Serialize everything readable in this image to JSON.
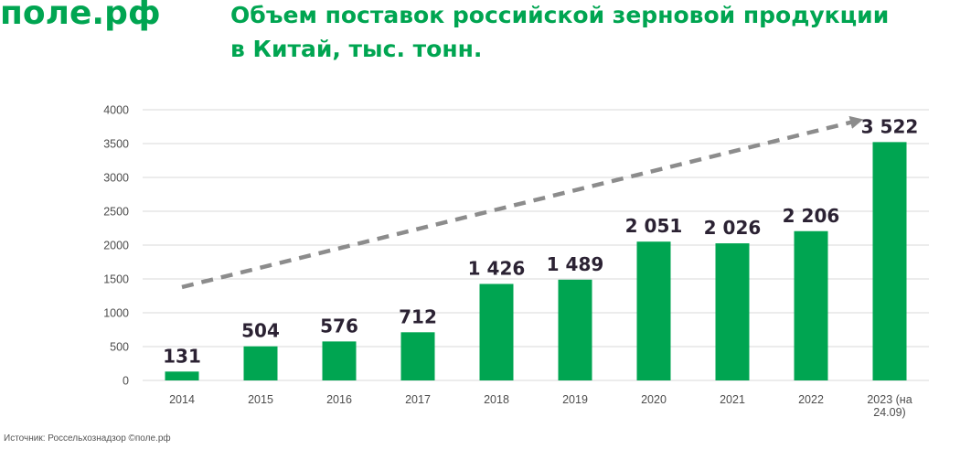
{
  "header": {
    "logo_text": "поле.рф",
    "title_line1": "Объем поставок российской зерновой продукции",
    "title_line2": "в Китай, тыс. тонн."
  },
  "footer": {
    "source": "Источник: Россельхознадзор ©поле.рф"
  },
  "colors": {
    "brand": "#00a551",
    "bar": "#00a551",
    "trend": "#8c8c8c",
    "label": "#2b2233",
    "grid": "#d9d9d9"
  },
  "chart_data": {
    "type": "bar",
    "title": "Объем поставок российской зерновой продукции в Китай, тыс. тонн.",
    "xlabel": "",
    "ylabel": "",
    "ylim": [
      0,
      4000
    ],
    "yticks": [
      0,
      500,
      1000,
      1500,
      2000,
      2500,
      3000,
      3500,
      4000
    ],
    "grid": true,
    "legend": "none",
    "categories": [
      [
        "2014"
      ],
      [
        "2015"
      ],
      [
        "2016"
      ],
      [
        "2017"
      ],
      [
        "2018"
      ],
      [
        "2019"
      ],
      [
        "2020"
      ],
      [
        "2021"
      ],
      [
        "2022"
      ],
      [
        "2023 (на",
        "24.09)"
      ]
    ],
    "values": [
      131,
      504,
      576,
      712,
      1426,
      1489,
      2051,
      2026,
      2206,
      3522
    ],
    "labels": [
      "131",
      "504",
      "576",
      "712",
      "1 426",
      "1 489",
      "2 051",
      "2 026",
      "2 206",
      "3 522"
    ],
    "trend_arrow": {
      "from_value": 1380,
      "to_value": 3840,
      "from_category": 0,
      "to_category": 8.6
    }
  }
}
